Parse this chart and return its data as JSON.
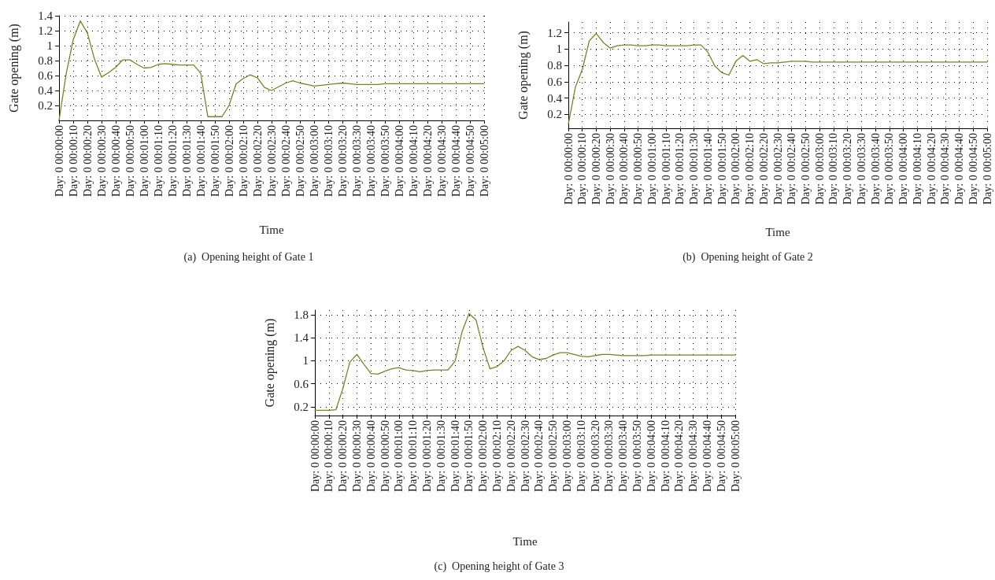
{
  "chart_data": [
    {
      "type": "line",
      "title": "(a)  Opening height of Gate 1",
      "xlabel": "Time",
      "ylabel": "Gate opening (m)",
      "grid": true,
      "marker": "none",
      "line_style": "solid",
      "ylim": [
        0,
        1.4
      ],
      "yticks": [
        0.2,
        0.4,
        0.6,
        0.8,
        1,
        1.2,
        1.4
      ],
      "categories": [
        "Day: 0 00:00:00",
        null,
        "Day: 0 00:00:10",
        null,
        "Day: 0 00:00:20",
        null,
        "Day: 0 00:00:30",
        null,
        "Day: 0 00:00:40",
        null,
        "Day: 0 00:00:50",
        null,
        "Day: 0 00:01:00",
        null,
        "Day: 0 00:01:10",
        null,
        "Day: 0 00:01:20",
        null,
        "Day: 0 00:01:30",
        null,
        "Day: 0 00:01:40",
        null,
        "Day: 0 00:01:50",
        null,
        "Day: 0 00:02:00",
        null,
        "Day: 0 00:02:10",
        null,
        "Day: 0 00:02:20",
        null,
        "Day: 0 00:02:30",
        null,
        "Day: 0 00:02:40",
        null,
        "Day: 0 00:02:50",
        null,
        "Day: 0 00:03:00",
        null,
        "Day: 0 00:03:10",
        null,
        "Day: 0 00:03:20",
        null,
        "Day: 0 00:03:30",
        null,
        "Day: 0 00:03:40",
        null,
        "Day: 0 00:03:50",
        null,
        "Day: 0 00:04:00",
        null,
        "Day: 0 00:04:10",
        null,
        "Day: 0 00:04:20",
        null,
        "Day: 0 00:04:30",
        null,
        "Day: 0 00:04:40",
        null,
        "Day: 0 00:04:50",
        null,
        "Day: 0 00:05:00"
      ],
      "series": [
        {
          "color": "#7f7f22",
          "values": [
            0,
            0.62,
            1.08,
            1.33,
            1.17,
            0.82,
            0.58,
            0.64,
            0.71,
            0.81,
            0.81,
            0.75,
            0.7,
            0.71,
            0.75,
            0.76,
            0.75,
            0.74,
            0.74,
            0.74,
            0.63,
            0.05,
            0.05,
            0.05,
            0.2,
            0.49,
            0.56,
            0.61,
            0.57,
            0.44,
            0.4,
            0.45,
            0.5,
            0.53,
            0.5,
            0.48,
            0.46,
            0.47,
            0.48,
            0.49,
            0.5,
            0.49,
            0.48,
            0.48,
            0.48,
            0.48,
            0.49,
            0.49,
            0.49,
            0.49,
            0.49,
            0.49,
            0.49,
            0.49,
            0.49,
            0.49,
            0.49,
            0.49,
            0.49,
            0.49,
            0.49
          ]
        }
      ]
    },
    {
      "type": "line",
      "title": "(b)  Opening height of Gate 2",
      "xlabel": "Time",
      "ylabel": "Gate opening (m)",
      "grid": true,
      "marker": "none",
      "line_style": "solid",
      "ylim": [
        0.03,
        1.33
      ],
      "yticks": [
        0.2,
        0.4,
        0.6,
        0.8,
        1,
        1.2
      ],
      "categories": [
        "Day: 0 00:00:00",
        null,
        "Day: 0 00:00:10",
        null,
        "Day: 0 00:00:20",
        null,
        "Day: 0 00:00:30",
        null,
        "Day: 0 00:00:40",
        null,
        "Day: 0 00:00:50",
        null,
        "Day: 0 00:01:00",
        null,
        "Day: 0 00:01:10",
        null,
        "Day: 0 00:01:20",
        null,
        "Day: 0 00:01:30",
        null,
        "Day: 0 00:01:40",
        null,
        "Day: 0 00:01:50",
        null,
        "Day: 0 00:02:00",
        null,
        "Day: 0 00:02:10",
        null,
        "Day: 0 00:02:20",
        null,
        "Day: 0 00:02:30",
        null,
        "Day: 0 00:02:40",
        null,
        "Day: 0 00:02:50",
        null,
        "Day: 0 00:03:00",
        null,
        "Day: 0 00:03:10",
        null,
        "Day: 0 00:03:20",
        null,
        "Day: 0 00:03:30",
        null,
        "Day: 0 00:03:40",
        null,
        "Day: 0 00:03:50",
        null,
        "Day: 0 00:04:00",
        null,
        "Day: 0 00:04:10",
        null,
        "Day: 0 00:04:20",
        null,
        "Day: 0 00:04:30",
        null,
        "Day: 0 00:04:40",
        null,
        "Day: 0 00:04:50",
        null,
        "Day: 0 00:05:00"
      ],
      "series": [
        {
          "color": "#7f7f22",
          "values": [
            0.08,
            0.53,
            0.75,
            1.1,
            1.19,
            1.08,
            1.01,
            1.04,
            1.05,
            1.05,
            1.04,
            1.04,
            1.05,
            1.05,
            1.04,
            1.04,
            1.04,
            1.04,
            1.05,
            1.05,
            0.96,
            0.79,
            0.71,
            0.68,
            0.85,
            0.92,
            0.85,
            0.87,
            0.82,
            0.83,
            0.83,
            0.84,
            0.85,
            0.85,
            0.85,
            0.84,
            0.84,
            0.84,
            0.84,
            0.84,
            0.84,
            0.84,
            0.84,
            0.84,
            0.84,
            0.84,
            0.84,
            0.84,
            0.84,
            0.84,
            0.84,
            0.84,
            0.84,
            0.84,
            0.84,
            0.84,
            0.84,
            0.84,
            0.84,
            0.84,
            0.84
          ]
        }
      ]
    },
    {
      "type": "line",
      "title": "(c)  Opening height of Gate 3",
      "xlabel": "Time",
      "ylabel": "Gate opening (m)",
      "grid": true,
      "marker": "none",
      "line_style": "solid",
      "ylim": [
        0.05,
        1.88
      ],
      "yticks": [
        0.2,
        0.6,
        1,
        1.4,
        1.8
      ],
      "categories": [
        "Day: 0 00:00:00",
        null,
        "Day: 0 00:00:10",
        null,
        "Day: 0 00:00:20",
        null,
        "Day: 0 00:00:30",
        null,
        "Day: 0 00:00:40",
        null,
        "Day: 0 00:00:50",
        null,
        "Day: 0 00:01:00",
        null,
        "Day: 0 00:01:10",
        null,
        "Day: 0 00:01:20",
        null,
        "Day: 0 00:01:30",
        null,
        "Day: 0 00:01:40",
        null,
        "Day: 0 00:01:50",
        null,
        "Day: 0 00:02:00",
        null,
        "Day: 0 00:02:10",
        null,
        "Day: 0 00:02:20",
        null,
        "Day: 0 00:02:30",
        null,
        "Day: 0 00:02:40",
        null,
        "Day: 0 00:02:50",
        null,
        "Day: 0 00:03:00",
        null,
        "Day: 0 00:03:10",
        null,
        "Day: 0 00:03:20",
        null,
        "Day: 0 00:03:30",
        null,
        "Day: 0 00:03:40",
        null,
        "Day: 0 00:03:50",
        null,
        "Day: 0 00:04:00",
        null,
        "Day: 0 00:04:10",
        null,
        "Day: 0 00:04:20",
        null,
        "Day: 0 00:04:30",
        null,
        "Day: 0 00:04:40",
        null,
        "Day: 0 00:04:50",
        null,
        "Day: 0 00:05:00"
      ],
      "series": [
        {
          "color": "#7f7f22",
          "values": [
            0.14,
            0.14,
            0.14,
            0.15,
            0.52,
            0.98,
            1.11,
            0.94,
            0.78,
            0.77,
            0.82,
            0.86,
            0.88,
            0.84,
            0.83,
            0.81,
            0.83,
            0.84,
            0.84,
            0.84,
            0.99,
            1.5,
            1.82,
            1.71,
            1.23,
            0.86,
            0.9,
            1,
            1.18,
            1.25,
            1.18,
            1.07,
            1.02,
            1.04,
            1.1,
            1.14,
            1.14,
            1.11,
            1.08,
            1.07,
            1.09,
            1.11,
            1.11,
            1.1,
            1.09,
            1.09,
            1.09,
            1.09,
            1.1,
            1.1,
            1.1,
            1.1,
            1.1,
            1.1,
            1.1,
            1.1,
            1.1,
            1.1,
            1.1,
            1.1,
            1.1
          ]
        }
      ]
    }
  ]
}
